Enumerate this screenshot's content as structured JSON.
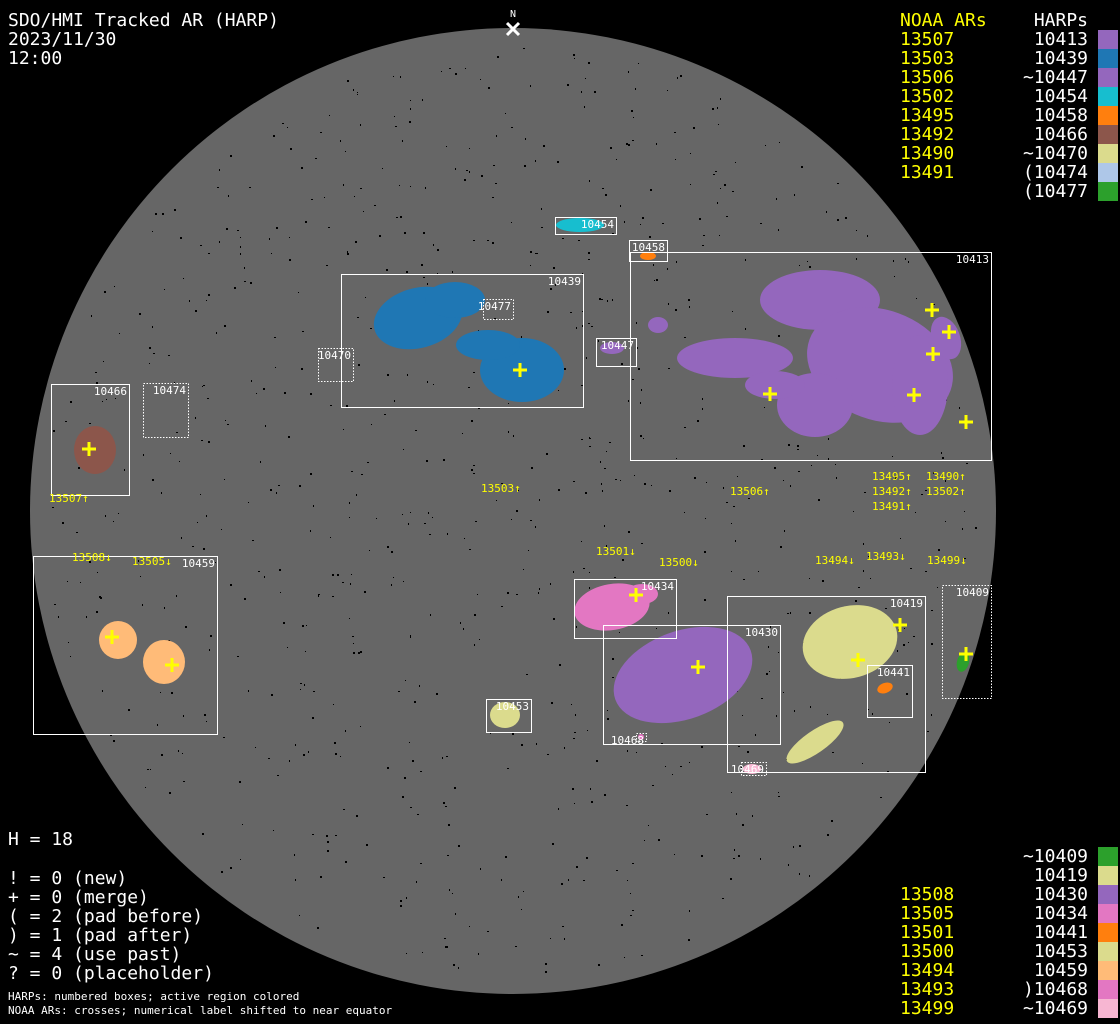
{
  "header": {
    "title": "SDO/HMI Tracked AR (HARP)",
    "date": "2023/11/30",
    "time": "12:00",
    "north_marker": "N"
  },
  "colors": {
    "background": "#000000",
    "disk": "#666666",
    "noaa_text": "#ffff00",
    "harp_text": "#ffffff",
    "cross": "#ffff00"
  },
  "legend_top": {
    "noaa_header": "NOAA ARs",
    "harp_header": "HARPs",
    "rows": [
      {
        "noaa": "13507",
        "harp": "10413",
        "color": "#9467bd"
      },
      {
        "noaa": "13503",
        "harp": "10439",
        "color": "#1f77b4"
      },
      {
        "noaa": "13506",
        "harp": "~10447",
        "color": "#9467bd"
      },
      {
        "noaa": "13502",
        "harp": "10454",
        "color": "#17becf"
      },
      {
        "noaa": "13495",
        "harp": "10458",
        "color": "#ff7f0e"
      },
      {
        "noaa": "13492",
        "harp": "10466",
        "color": "#8c564b"
      },
      {
        "noaa": "13490",
        "harp": "~10470",
        "color": "#dbdb8d"
      },
      {
        "noaa": "13491",
        "harp": "(10474",
        "color": "#aec7e8"
      },
      {
        "noaa": "",
        "harp": "(10477",
        "color": "#2ca02c"
      }
    ]
  },
  "legend_bottom": {
    "rows": [
      {
        "noaa": "",
        "harp": "~10409",
        "color": "#2ca02c"
      },
      {
        "noaa": "",
        "harp": "10419",
        "color": "#dbdb8d"
      },
      {
        "noaa": "13508",
        "harp": "10430",
        "color": "#9467bd"
      },
      {
        "noaa": "13505",
        "harp": "10434",
        "color": "#e377c2"
      },
      {
        "noaa": "13501",
        "harp": "10441",
        "color": "#ff7f0e"
      },
      {
        "noaa": "13500",
        "harp": "10453",
        "color": "#dbdb8d"
      },
      {
        "noaa": "13494",
        "harp": "10459",
        "color": "#ffbb78"
      },
      {
        "noaa": "13493",
        "harp": ")10468",
        "color": "#e377c2"
      },
      {
        "noaa": "13499",
        "harp": "~10469",
        "color": "#f7b6d2"
      }
    ]
  },
  "stats": {
    "h_count": "H = 18",
    "lines": [
      "! = 0 (new)",
      "+ = 0 (merge)",
      "( = 2 (pad before)",
      ") = 1 (pad after)",
      "~ = 4 (use past)",
      "? = 0 (placeholder)"
    ],
    "notes": [
      "HARPs: numbered boxes; active region colored",
      "NOAA ARs: crosses; numerical label shifted to near equator"
    ]
  },
  "harp_boxes": [
    {
      "id": "10413",
      "style": "solid",
      "color": "#9467bd"
    },
    {
      "id": "10439",
      "style": "solid",
      "color": "#1f77b4"
    },
    {
      "id": "10454",
      "style": "solid",
      "color": "#17becf"
    },
    {
      "id": "10458",
      "style": "solid",
      "color": "#ff7f0e"
    },
    {
      "id": "10447",
      "style": "solid",
      "color": "#9467bd"
    },
    {
      "id": "10477",
      "style": "dotted",
      "color": "#2ca02c"
    },
    {
      "id": "10470",
      "style": "dotted",
      "color": "#dbdb8d"
    },
    {
      "id": "10466",
      "style": "solid",
      "color": "#8c564b"
    },
    {
      "id": "10474",
      "style": "dotted",
      "color": "#aec7e8"
    },
    {
      "id": "10459",
      "style": "solid",
      "color": "#ffbb78"
    },
    {
      "id": "10434",
      "style": "solid",
      "color": "#e377c2"
    },
    {
      "id": "10430",
      "style": "solid",
      "color": "#9467bd"
    },
    {
      "id": "10419",
      "style": "solid",
      "color": "#dbdb8d"
    },
    {
      "id": "10441",
      "style": "solid",
      "color": "#ff7f0e"
    },
    {
      "id": "10409",
      "style": "dotted",
      "color": "#2ca02c"
    },
    {
      "id": "10453",
      "style": "solid",
      "color": "#dbdb8d"
    },
    {
      "id": "10468",
      "style": "dotted",
      "color": "#e377c2"
    },
    {
      "id": "10469",
      "style": "dotted",
      "color": "#f7b6d2"
    }
  ],
  "noaa_labels": [
    {
      "id": "13507",
      "text": "13507↑"
    },
    {
      "id": "13503",
      "text": "13503↑"
    },
    {
      "id": "13506",
      "text": "13506↑"
    },
    {
      "id": "13495",
      "text": "13495↑"
    },
    {
      "id": "13490",
      "text": "13490↑"
    },
    {
      "id": "13492",
      "text": "13492↑"
    },
    {
      "id": "13502",
      "text": "13502↑"
    },
    {
      "id": "13491",
      "text": "13491↑"
    },
    {
      "id": "13508",
      "text": "13508↓"
    },
    {
      "id": "13505",
      "text": "13505↓"
    },
    {
      "id": "13501",
      "text": "13501↓"
    },
    {
      "id": "13500",
      "text": "13500↓"
    },
    {
      "id": "13494",
      "text": "13494↓"
    },
    {
      "id": "13493",
      "text": "13493↓"
    },
    {
      "id": "13499",
      "text": "13499↓"
    }
  ]
}
